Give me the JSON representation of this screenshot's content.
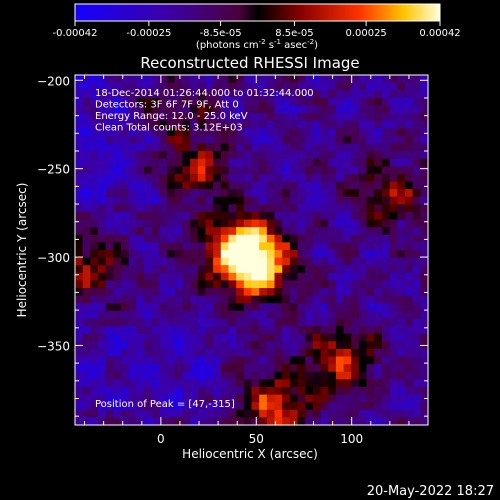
{
  "colorbar": {
    "tick_labels": [
      "-0.00042",
      "-0.00025",
      "-8.5e-05",
      "8.5e-05",
      "0.00025",
      "0.00042"
    ],
    "tick_values": [
      -0.00042,
      -0.00025,
      -8.5e-05,
      8.5e-05,
      0.00025,
      0.00042
    ],
    "range": [
      -0.00042,
      0.00042
    ],
    "units": "(photons cm",
    "units_sup1": "-2",
    "units_mid": " s",
    "units_sup2": "-1",
    "units_end": " asec",
    "units_sup3": "-2",
    "units_close": ")"
  },
  "chart_data": {
    "type": "heatmap",
    "title": "Reconstructed RHESSI Image",
    "xlabel": "Heliocentric X (arcsec)",
    "ylabel": "Heliocentric Y (arcsec)",
    "xlim": [
      -45,
      140
    ],
    "ylim": [
      -395,
      -197
    ],
    "x_ticks": [
      0,
      50,
      100
    ],
    "y_ticks": [
      -200,
      -250,
      -300,
      -350
    ],
    "annotations": [
      "18-Dec-2014 01:26:44.000 to 01:32:44.000",
      "Detectors: 3F 6F 7F 9F, Att 0",
      "Energy Range: 12.0 - 25.0 keV",
      "Clean     Total counts: 3.12E+03"
    ],
    "peak_label": "Position of Peak = [47,-315]",
    "peak_position": [
      47,
      -315
    ],
    "sources": [
      {
        "x": 50,
        "y": -305,
        "peak": 0.00042
      },
      {
        "x": 40,
        "y": -293,
        "peak": 0.0003
      },
      {
        "x": 15,
        "y": -250,
        "peak": 0.00025
      },
      {
        "x": 60,
        "y": -385,
        "peak": 0.00027
      },
      {
        "x": 95,
        "y": -358,
        "peak": 0.00024
      },
      {
        "x": -40,
        "y": -305,
        "peak": 0.0002
      },
      {
        "x": 120,
        "y": -265,
        "peak": 0.00018
      },
      {
        "x": 5,
        "y": -215,
        "peak": 0.00017
      }
    ],
    "grid": false,
    "colormap": "blue-purple-red-yellow-white"
  },
  "footer_date": "20-May-2022 18:27"
}
